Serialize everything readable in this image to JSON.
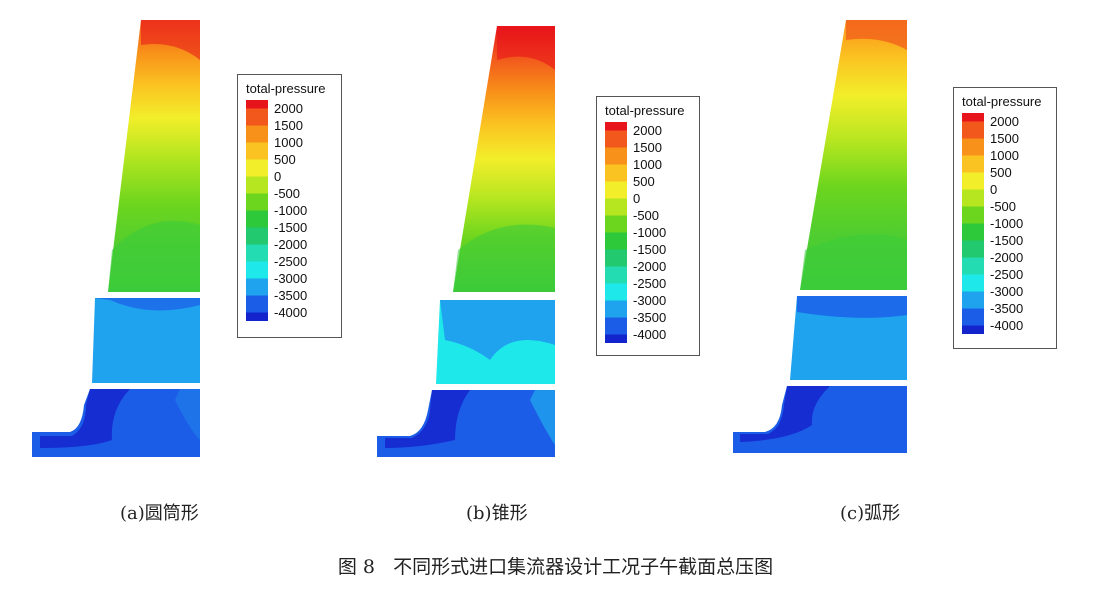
{
  "legend": {
    "title": "total-pressure",
    "levels": [
      "2000",
      "1500",
      "1000",
      "500",
      "0",
      "-500",
      "-1000",
      "-1500",
      "-2000",
      "-2500",
      "-3000",
      "-3500",
      "-4000"
    ],
    "colors": [
      "#e8141b",
      "#f2581c",
      "#f89119",
      "#fbc321",
      "#f2ee2a",
      "#b5e620",
      "#6cd51e",
      "#2ec83b",
      "#22c96f",
      "#24dcb2",
      "#1ee8ea",
      "#1fa3ee",
      "#1c5de8",
      "#1424cc"
    ]
  },
  "panels": [
    {
      "caption": "(a)圆筒形"
    },
    {
      "caption": "(b)锥形"
    },
    {
      "caption": "(c)弧形"
    }
  ],
  "figure_caption": "图 8   不同形式进口集流器设计工况子午截面总压图"
}
